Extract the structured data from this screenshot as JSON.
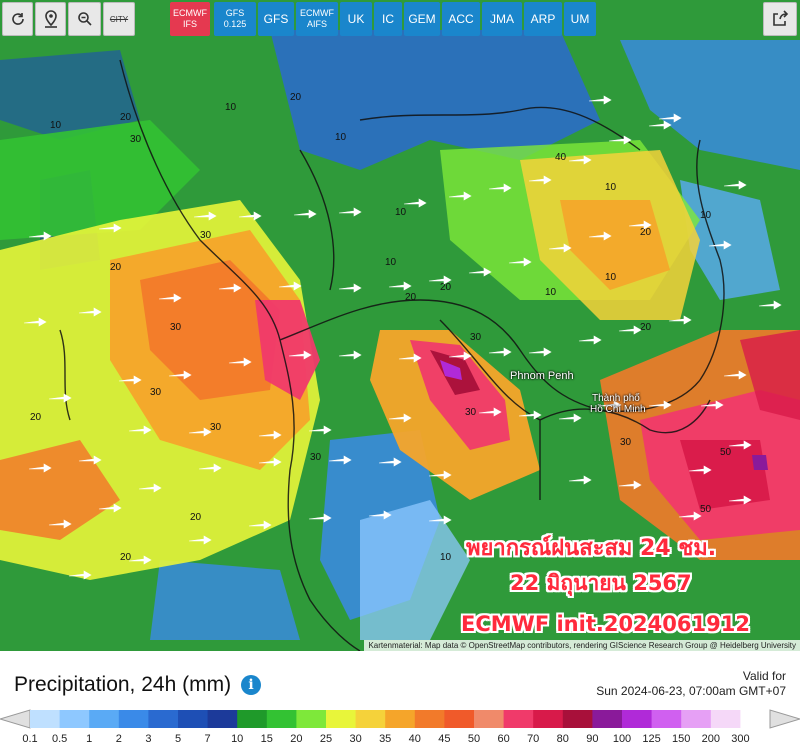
{
  "toolbar": {
    "buttons": [
      {
        "label": "",
        "icon": "refresh-icon"
      },
      {
        "label": "",
        "icon": "location-pin-icon"
      },
      {
        "label": "",
        "icon": "zoom-icon"
      },
      {
        "label": "CITY",
        "icon": "city-toggle-icon"
      }
    ],
    "models": [
      {
        "label": "ECMWF",
        "sub": "IFS",
        "active": true
      },
      {
        "label": "GFS",
        "sub": "0.125",
        "active": false
      },
      {
        "label": "GFS",
        "sub": "",
        "active": false
      },
      {
        "label": "ECMWF",
        "sub": "AIFS",
        "active": false
      },
      {
        "label": "UK",
        "sub": "",
        "active": false
      },
      {
        "label": "IC",
        "sub": "",
        "active": false
      },
      {
        "label": "GEM",
        "sub": "",
        "active": false
      },
      {
        "label": "ACC",
        "sub": "",
        "active": false
      },
      {
        "label": "JMA",
        "sub": "",
        "active": false
      },
      {
        "label": "ARP",
        "sub": "",
        "active": false
      },
      {
        "label": "UM",
        "sub": "",
        "active": false
      }
    ],
    "share_icon": "share-icon"
  },
  "map": {
    "overlay_line1": "พยากรณ์ฝนสะสม 24 ชม.",
    "overlay_line2": "22 มิถุนายน 2567",
    "overlay_line3": "ECMWF init.2024061912",
    "cities": [
      {
        "name": "Phnom Penh"
      },
      {
        "name": "Thành phố"
      },
      {
        "name": "Hồ Chí Minh"
      }
    ],
    "attribution": "Kartenmaterial: Map data © OpenStreetMap contributors, rendering GIScience Research Group @ Heidelberg University",
    "contour_labels": [
      "10",
      "20",
      "30",
      "10",
      "20",
      "10",
      "30",
      "20",
      "10",
      "20",
      "30",
      "10",
      "20",
      "30",
      "10",
      "30",
      "20",
      "10",
      "50",
      "30",
      "20",
      "10",
      "30",
      "20",
      "40",
      "10",
      "50",
      "30",
      "20",
      "30",
      "10",
      "20"
    ],
    "colors": {
      "accent": "#1a86cc",
      "active": "#e53950",
      "overlay_text": "#ff2a3c"
    }
  },
  "legend": {
    "title": "Precipitation, 24h (mm)",
    "info_icon": "info-icon",
    "valid_label": "Valid for",
    "valid_time": "Sun 2024-06-23, 07:00am GMT+07",
    "ticks": [
      "0.1",
      "0.5",
      "1",
      "2",
      "3",
      "5",
      "7",
      "10",
      "15",
      "20",
      "25",
      "30",
      "35",
      "40",
      "45",
      "50",
      "60",
      "70",
      "80",
      "90",
      "100",
      "125",
      "150",
      "200",
      "300"
    ],
    "colors": [
      "#bfe0ff",
      "#8ec8ff",
      "#5aaaf5",
      "#3a8ae8",
      "#2a6ad0",
      "#1e4fb5",
      "#1c3a9a",
      "#1f9a2a",
      "#33c233",
      "#7ee83a",
      "#e8f53a",
      "#f5d23a",
      "#f5a52a",
      "#f27a2a",
      "#f05a2a",
      "#f08a6a",
      "#f03a6a",
      "#d81a4a",
      "#a8103a",
      "#8a1a9a",
      "#b02ad8",
      "#d060f0",
      "#e6a0f5",
      "#f5d8f8",
      "#ffffff"
    ]
  }
}
